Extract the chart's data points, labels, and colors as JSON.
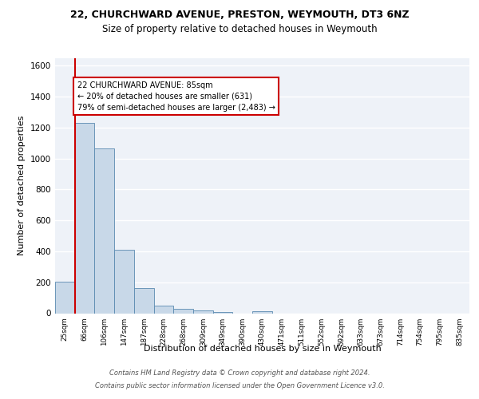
{
  "title1": "22, CHURCHWARD AVENUE, PRESTON, WEYMOUTH, DT3 6NZ",
  "title2": "Size of property relative to detached houses in Weymouth",
  "xlabel": "Distribution of detached houses by size in Weymouth",
  "ylabel": "Number of detached properties",
  "bin_labels": [
    "25sqm",
    "66sqm",
    "106sqm",
    "147sqm",
    "187sqm",
    "228sqm",
    "268sqm",
    "309sqm",
    "349sqm",
    "390sqm",
    "430sqm",
    "471sqm",
    "511sqm",
    "552sqm",
    "592sqm",
    "633sqm",
    "673sqm",
    "714sqm",
    "754sqm",
    "795sqm",
    "835sqm"
  ],
  "bin_values": [
    205,
    1230,
    1065,
    410,
    165,
    48,
    28,
    18,
    10,
    0,
    12,
    0,
    0,
    0,
    0,
    0,
    0,
    0,
    0,
    0,
    0
  ],
  "bar_color": "#c8d8e8",
  "bar_edge_color": "#5a8ab0",
  "background_color": "#eef2f8",
  "grid_color": "#ffffff",
  "red_line_color": "#cc0000",
  "annotation_text": "22 CHURCHWARD AVENUE: 85sqm\n← 20% of detached houses are smaller (631)\n79% of semi-detached houses are larger (2,483) →",
  "annotation_box_color": "#ffffff",
  "annotation_border_color": "#cc0000",
  "footer1": "Contains HM Land Registry data © Crown copyright and database right 2024.",
  "footer2": "Contains public sector information licensed under the Open Government Licence v3.0.",
  "ylim": [
    0,
    1650
  ],
  "yticks": [
    0,
    200,
    400,
    600,
    800,
    1000,
    1200,
    1400,
    1600
  ]
}
